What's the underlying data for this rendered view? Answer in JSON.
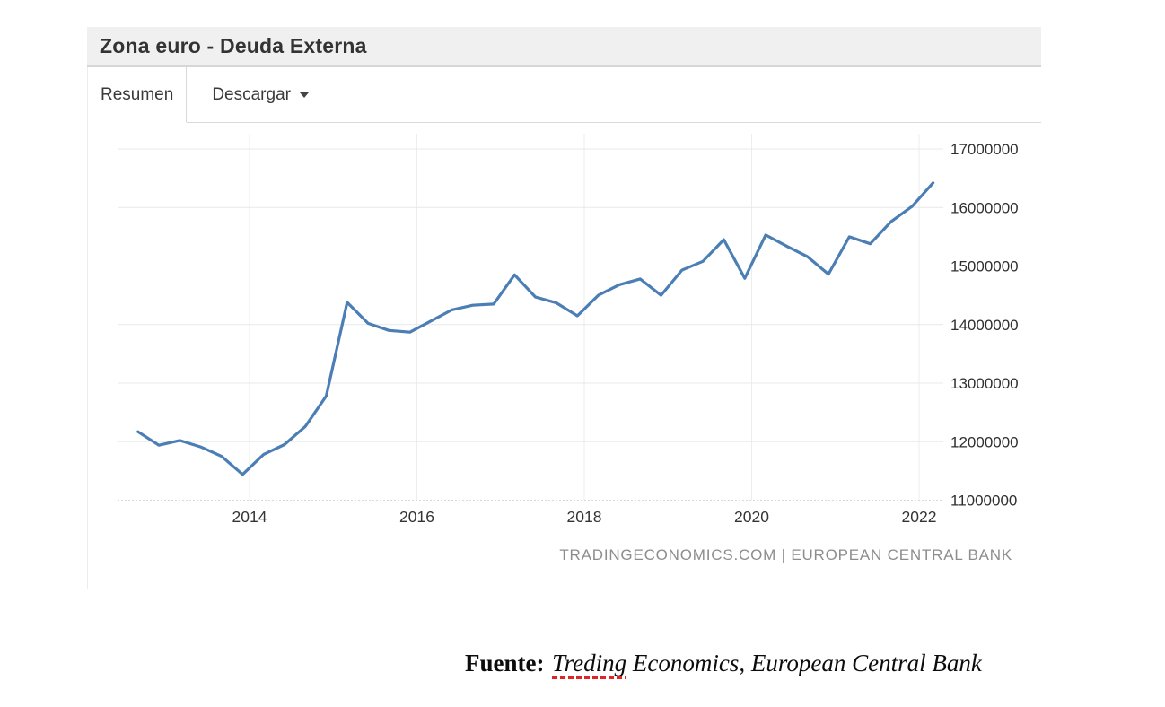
{
  "window": {
    "title": "Zona euro - Deuda Externa"
  },
  "tabs": {
    "resumen_label": "Resumen",
    "descargar_label": "Descargar"
  },
  "chart_data": {
    "type": "line",
    "title": "Zona euro - Deuda Externa",
    "series": [
      {
        "name": "Deuda Externa",
        "x_quarters": [
          "2012 Q3",
          "2012 Q4",
          "2013 Q1",
          "2013 Q2",
          "2013 Q3",
          "2013 Q4",
          "2014 Q1",
          "2014 Q2",
          "2014 Q3",
          "2014 Q4",
          "2015 Q1",
          "2015 Q2",
          "2015 Q3",
          "2015 Q4",
          "2016 Q1",
          "2016 Q2",
          "2016 Q3",
          "2016 Q4",
          "2017 Q1",
          "2017 Q2",
          "2017 Q3",
          "2017 Q4",
          "2018 Q1",
          "2018 Q2",
          "2018 Q3",
          "2018 Q4",
          "2019 Q1",
          "2019 Q2",
          "2019 Q3",
          "2019 Q4",
          "2020 Q1",
          "2020 Q2",
          "2020 Q3",
          "2020 Q4",
          "2021 Q1",
          "2021 Q2",
          "2021 Q3",
          "2021 Q4",
          "2022 Q1"
        ],
        "values": [
          12170000,
          11940000,
          12020000,
          11910000,
          11750000,
          11440000,
          11780000,
          11950000,
          12260000,
          12780000,
          14380000,
          14020000,
          13900000,
          13870000,
          14060000,
          14250000,
          14330000,
          14350000,
          14850000,
          14470000,
          14370000,
          14150000,
          14500000,
          14680000,
          14780000,
          14500000,
          14930000,
          15080000,
          15450000,
          14790000,
          15530000,
          15340000,
          15160000,
          14860000,
          15500000,
          15380000,
          15760000,
          16020000,
          16420000
        ]
      }
    ],
    "x_start_year": 2012.667,
    "x_step_years": 0.25,
    "xticks": [
      2014,
      2016,
      2018,
      2020,
      2022
    ],
    "yticks": [
      11000000,
      12000000,
      13000000,
      14000000,
      15000000,
      16000000,
      17000000
    ],
    "ylim": [
      11000000,
      17000000
    ],
    "xlim": [
      2012.42,
      2022.29
    ],
    "grid": true,
    "legend": "none",
    "line_color": "#4a7eb5",
    "grid_color": "#e8e8e8",
    "watermark": "TRADINGECONOMICS.COM | EUROPEAN CENTRAL BANK"
  },
  "caption": {
    "label": "Fuente:",
    "misspelled_word": "Treding",
    "rest": " Economics, European Central Bank"
  }
}
